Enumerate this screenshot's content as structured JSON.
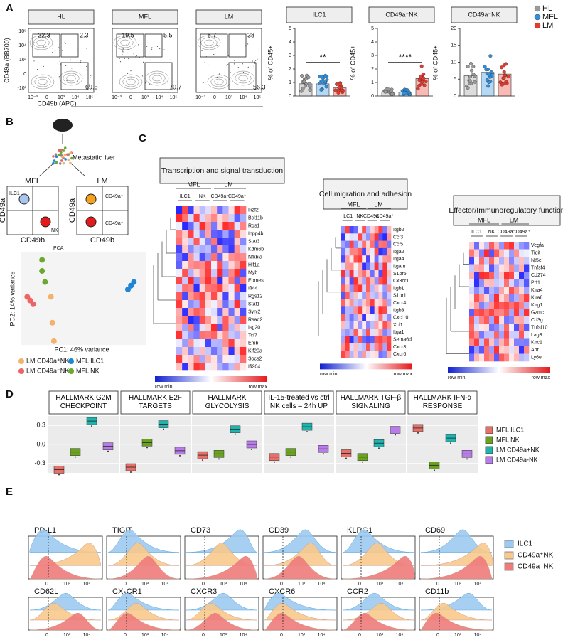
{
  "panel_a": {
    "label": "A",
    "flow_ylabel": "CD49a (BB700)",
    "flow_xlabel": "CD49b (APC)",
    "flow_yticks": [
      "10⁵",
      "10⁴",
      "10³",
      "0",
      "-10³"
    ],
    "flow_xticks": [
      "10⁻³",
      "0",
      "10³",
      "10⁴",
      "10⁵"
    ],
    "flow_plots": [
      {
        "title": "HL",
        "gates": [
          "22.3",
          "2.3",
          "69.5"
        ]
      },
      {
        "title": "MFL",
        "gates": [
          "19.5",
          "5.5",
          "70.7"
        ]
      },
      {
        "title": "LM",
        "gates": [
          "5.7",
          "38",
          "56.3"
        ]
      }
    ],
    "bar_ylabel": "% of CD45+",
    "bar_plots": [
      {
        "title": "ILC1",
        "ylim": [
          0,
          5
        ],
        "yticks": [
          0,
          1,
          2,
          3,
          4,
          5
        ],
        "values": [
          0.9,
          0.9,
          0.6
        ],
        "sig": "**"
      },
      {
        "title": "CD49a⁺NK",
        "ylim": [
          0,
          5
        ],
        "yticks": [
          0,
          1,
          2,
          3,
          4,
          5
        ],
        "values": [
          0.3,
          0.3,
          1.3
        ],
        "sig": "****"
      },
      {
        "title": "CD49a⁻NK",
        "ylim": [
          0,
          20
        ],
        "yticks": [
          0,
          5,
          10,
          15,
          20
        ],
        "values": [
          6,
          7,
          6.5
        ]
      }
    ],
    "legend": [
      {
        "name": "HL",
        "color": "#9a9a9a"
      },
      {
        "name": "MFL",
        "color": "#2f8fde"
      },
      {
        "name": "LM",
        "color": "#e8392c"
      }
    ]
  },
  "panel_b": {
    "label": "B",
    "organ": "Metastatic liver",
    "left": "MFL",
    "right": "LM",
    "left_cells": [
      "ILC1",
      "NK"
    ],
    "right_cells": [
      "CD49a⁺",
      "CD49a⁻"
    ],
    "ylabel": "CD49a",
    "xlabel": "CD49b",
    "pca_title": "PCA",
    "pca_ylabel": "PC2: 14% variance",
    "pca_xlabel": "PC1: 46% variance",
    "pca_xlim": [
      -15,
      27
    ],
    "pca_ylim": [
      -14,
      11
    ],
    "groups": [
      {
        "name": "LM CD49a⁺NK",
        "color": "#f5b06a",
        "x": [
          -5,
          -4.5,
          -4
        ],
        "y": [
          -1,
          -8,
          -13
        ]
      },
      {
        "name": "LM CD49a⁻NK",
        "color": "#ee6363",
        "x": [
          -13,
          -12,
          -11
        ],
        "y": [
          -1,
          -2,
          -3
        ]
      },
      {
        "name": "MFL ILC1",
        "color": "#1f86d6",
        "x": [
          21,
          22,
          23
        ],
        "y": [
          1,
          2,
          3
        ]
      },
      {
        "name": "MFL NK",
        "color": "#6aa82e",
        "x": [
          -8,
          -8,
          -7
        ],
        "y": [
          9,
          6,
          3
        ]
      }
    ]
  },
  "panel_c": {
    "label": "C",
    "columns": [
      "MFL",
      "LM",
      "ILC1",
      "NK",
      "CD49a⁻",
      "CD49a⁺"
    ],
    "row_min": "row min",
    "row_max": "row max",
    "maps": [
      {
        "title": "Transcription and signal transduction",
        "genes": [
          "Ikzf2",
          "Bcl11b",
          "Rgs1",
          "Inpp4b",
          "Stat3",
          "Kdm6b",
          "Nfkbia",
          "Hif1a",
          "Myb",
          "Eomes",
          "Ifi44",
          "Rgs12",
          "Stat1",
          "Synj2",
          "Rsad2",
          "Isg20",
          "Tcf7",
          "Emb",
          "Kif20a",
          "Socs2",
          "Ifi204"
        ]
      },
      {
        "title": "Cell migration and adhesion",
        "genes": [
          "Itgb2",
          "Ccl3",
          "Ccl5",
          "Itga2",
          "Itga4",
          "Itgam",
          "S1pr5",
          "Cx3cr1",
          "Itgb1",
          "S1pr1",
          "Cxcr4",
          "Itgb3",
          "Cxcl10",
          "Xcl1",
          "Itga1",
          "Sema6d",
          "Cxcr3",
          "Cxcr6"
        ]
      },
      {
        "title": "Effector/Immunoregulatory function",
        "genes": [
          "Vegfa",
          "Tigit",
          "Nt5e",
          "Tnfsf4",
          "Cd274",
          "Prf1",
          "Klra4",
          "Klra8",
          "Klrg1",
          "Gzmc",
          "Cd3g",
          "Tnfsf10",
          "Lag3",
          "Klrc1",
          "Ahr",
          "Ly6e"
        ]
      }
    ]
  },
  "panel_d": {
    "label": "D",
    "ylim": [
      -0.45,
      0.45
    ],
    "yticks": [
      -0.3,
      {
        "value": 0,
        "label": "0.0"
      },
      0.3
    ],
    "series": [
      {
        "name": "MFL ILC1",
        "color": "#e8706b"
      },
      {
        "name": "MFL NK",
        "color": "#6aa11e"
      },
      {
        "name": "LM CD49a+NK",
        "color": "#1fb3ad"
      },
      {
        "name": "LM CD49a-NK",
        "color": "#b77ce8"
      }
    ],
    "facets": [
      {
        "title": "HALLMARK G2M CHECKPOINT",
        "values": [
          -0.4,
          -0.12,
          0.37,
          -0.03
        ]
      },
      {
        "title": "HALLMARK E2F TARGETS",
        "values": [
          -0.36,
          0.03,
          0.32,
          -0.1
        ]
      },
      {
        "title": "HALLMARK GLYCOLYSIS",
        "values": [
          -0.17,
          -0.15,
          0.24,
          0
        ]
      },
      {
        "title": "IL-15-treated vs ctrl NK cells – 24h UP",
        "values": [
          -0.2,
          -0.12,
          0.28,
          -0.07
        ]
      },
      {
        "title": "HALLMARK TGF-β SIGNALING",
        "values": [
          -0.14,
          -0.2,
          0.02,
          0.23
        ]
      },
      {
        "title": "HALLMARK IFN-α RESPONSE",
        "values": [
          0.26,
          -0.33,
          0.1,
          -0.15
        ]
      }
    ]
  },
  "panel_e": {
    "label": "E",
    "xticks": [
      "0",
      "10³",
      "10⁴"
    ],
    "legend": [
      {
        "name": "ILC1",
        "color": "#9ccaf0"
      },
      {
        "name": "CD49a⁺NK",
        "color": "#f8c98c"
      },
      {
        "name": "CD49a⁻NK",
        "color": "#ef7b7b"
      }
    ],
    "markers": [
      "PD-L1",
      "TIGIT",
      "CD73",
      "CD39",
      "KLRG1",
      "CD69",
      "CD62L",
      "CX₃CR1",
      "CXCR3",
      "CXCR6",
      "CCR2",
      "CD11b"
    ]
  }
}
